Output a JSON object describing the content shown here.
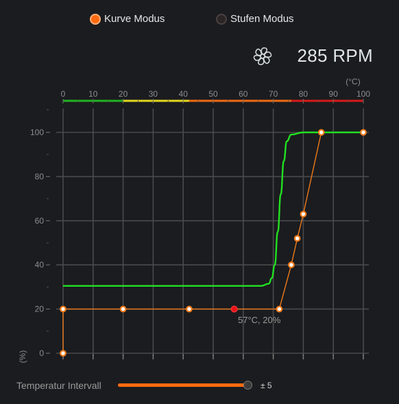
{
  "modes": {
    "kurve": {
      "label": "Kurve Modus",
      "selected": true
    },
    "stufen": {
      "label": "Stufen Modus",
      "selected": false
    }
  },
  "fan": {
    "icon": "fan-icon",
    "rpm": "285 RPM"
  },
  "chart_data": {
    "type": "line",
    "temp_unit_label": "(°C)",
    "y_unit_label": "(%)",
    "x_ticks": [
      0,
      10,
      20,
      30,
      40,
      50,
      60,
      70,
      80,
      90,
      100
    ],
    "y_ticks": [
      0,
      20,
      40,
      60,
      80,
      100
    ],
    "xlim": [
      0,
      100
    ],
    "ylim": [
      0,
      100
    ],
    "temp_scale_colors": [
      {
        "from": 0,
        "to": 20,
        "color": "#21b321"
      },
      {
        "from": 20,
        "to": 42,
        "color": "#e3d81f"
      },
      {
        "from": 42,
        "to": 76,
        "color": "#f06a12"
      },
      {
        "from": 76,
        "to": 100,
        "color": "#d81a1a"
      }
    ],
    "series": [
      {
        "kind": "fan-curve",
        "color": "#f07a1a",
        "points": [
          [
            0,
            0
          ],
          [
            0,
            20
          ],
          [
            20,
            20
          ],
          [
            42,
            20
          ],
          [
            72,
            20
          ],
          [
            76,
            40
          ],
          [
            78,
            52
          ],
          [
            80,
            63
          ],
          [
            86,
            100
          ],
          [
            100,
            100
          ]
        ]
      },
      {
        "kind": "actual",
        "color": "#22e022",
        "points": [
          [
            0,
            30.5
          ],
          [
            60,
            30.5
          ],
          [
            66,
            30.5
          ],
          [
            68.5,
            31.5
          ],
          [
            69.5,
            34
          ],
          [
            70.5,
            40
          ],
          [
            71.5,
            55
          ],
          [
            72.5,
            72
          ],
          [
            73.5,
            87
          ],
          [
            74.5,
            96
          ],
          [
            76,
            99
          ],
          [
            80,
            100
          ],
          [
            100,
            100
          ]
        ]
      }
    ],
    "current_point": {
      "x": 57,
      "y": 20,
      "color": "#e8141a"
    },
    "current_label": "57°C, 20%",
    "grid": true
  },
  "interval": {
    "label": "Temperatur Intervall",
    "value_text": "± 5",
    "fraction": 0.98,
    "accent": "#ff6a10"
  }
}
